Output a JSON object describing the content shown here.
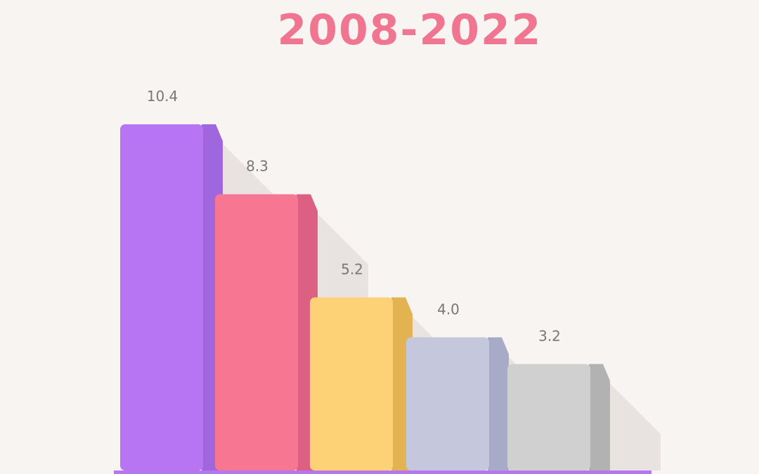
{
  "chart_data": {
    "type": "bar",
    "title": "2008-2022",
    "categories": [
      "",
      "",
      "",
      "",
      ""
    ],
    "values": [
      10.4,
      8.3,
      5.2,
      4.0,
      3.2
    ],
    "value_labels": [
      "10.4",
      "8.3",
      "5.2",
      "4.0",
      "3.2"
    ],
    "colors": {
      "fronts": [
        "#b775f3",
        "#f77692",
        "#fdd276",
        "#c5c7dc",
        "#d0d0d0"
      ],
      "sides": [
        "#a066de",
        "#dc6081",
        "#e3b352",
        "#a8abc8",
        "#b2b2b2"
      ],
      "shadow": "#e8e2e1",
      "baseline": "#b577ee",
      "title": "#f07591"
    },
    "grid": false,
    "legend": "none"
  }
}
